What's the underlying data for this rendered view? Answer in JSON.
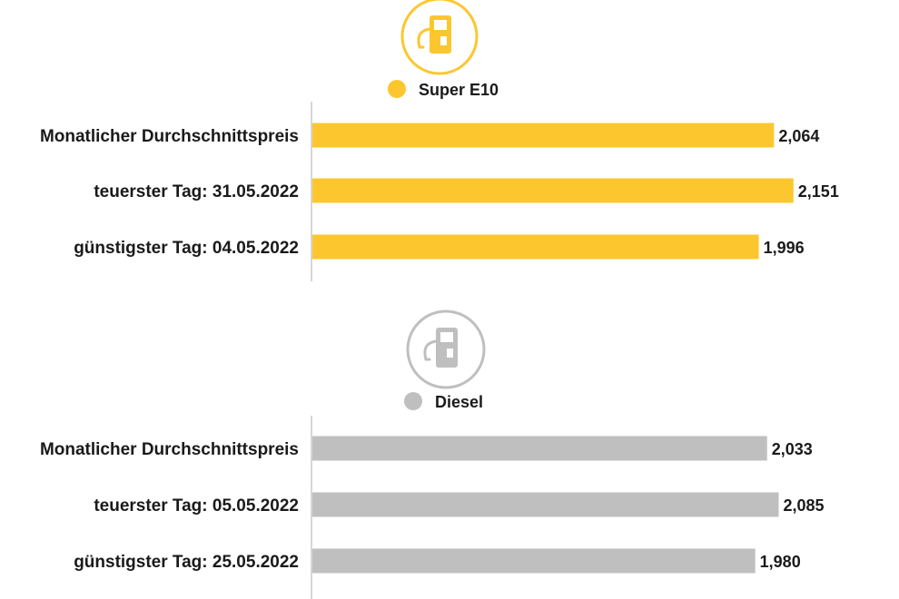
{
  "chart_data": [
    {
      "type": "bar",
      "orientation": "horizontal",
      "icon": "fuel-pump-icon",
      "legend": "Super E10",
      "color": "#fcc72e",
      "categories": [
        "Monatlicher Durchschnittspreis",
        "teuerster Tag: 31.05.2022",
        "günstigster Tag: 04.05.2022"
      ],
      "values": [
        2.064,
        2.151,
        1.996
      ],
      "value_labels": [
        "2,064",
        "2,151",
        "1,996"
      ],
      "xlim": [
        0,
        2.16
      ]
    },
    {
      "type": "bar",
      "orientation": "horizontal",
      "icon": "fuel-pump-icon",
      "legend": "Diesel",
      "color": "#bfbfbf",
      "categories": [
        "Monatlicher Durchschnittspreis",
        "teuerster Tag: 05.05.2022",
        "günstigster Tag: 25.05.2022"
      ],
      "values": [
        2.033,
        2.085,
        1.98
      ],
      "value_labels": [
        "2,033",
        "2,085",
        "1,980"
      ],
      "xlim": [
        0,
        2.16
      ]
    }
  ]
}
